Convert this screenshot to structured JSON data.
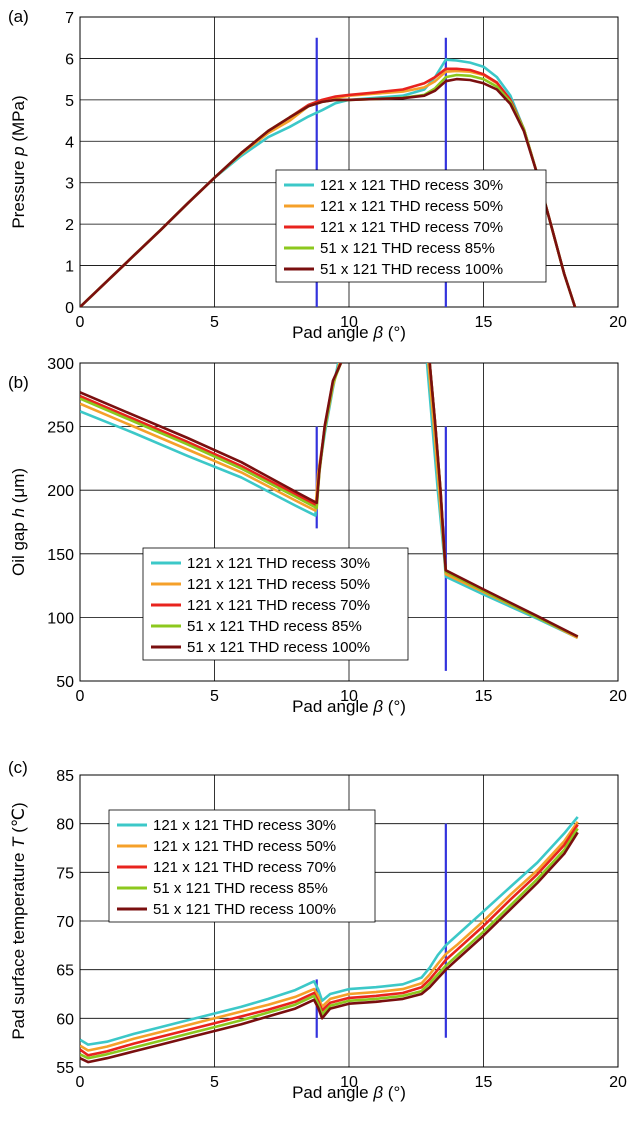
{
  "colors": {
    "series": [
      "#3cc8c8",
      "#f5a02a",
      "#e8231e",
      "#8cc81e",
      "#7a0f0f"
    ],
    "marker": "#3333dd",
    "grid": "#000000"
  },
  "chart_data": [
    {
      "type": "line",
      "panel_label": "(a)",
      "xlabel_prefix": "Pad angle ",
      "xlabel_symbol": "β",
      "xlabel_suffix": " (°)",
      "ylabel_prefix": "Pressure ",
      "ylabel_symbol": "p",
      "ylabel_suffix": " (MPa)",
      "xlim": [
        0,
        20
      ],
      "ylim": [
        0,
        7
      ],
      "xticks": [
        0,
        5,
        10,
        15,
        20
      ],
      "yticks": [
        0,
        1,
        2,
        3,
        4,
        5,
        6,
        7
      ],
      "grid": true,
      "legend_position": "lower-center",
      "markers": [
        {
          "x": 8.8,
          "y1": 0,
          "y2": 6.5
        },
        {
          "x": 13.6,
          "y1": 0,
          "y2": 6.5
        }
      ],
      "series": [
        {
          "name": "121 x 121 THD recess 30%",
          "x": [
            0,
            1,
            2,
            3,
            4,
            5,
            6,
            7,
            7.8,
            8.5,
            9.0,
            9.5,
            10,
            11,
            12,
            12.8,
            13.2,
            13.6,
            14.0,
            14.5,
            15.0,
            15.5,
            16.0,
            16.5,
            17.0,
            17.5,
            18.0,
            18.4
          ],
          "y": [
            0,
            0.62,
            1.24,
            1.86,
            2.5,
            3.12,
            3.65,
            4.1,
            4.35,
            4.6,
            4.75,
            4.92,
            5.0,
            5.05,
            5.1,
            5.25,
            5.55,
            5.97,
            5.95,
            5.9,
            5.8,
            5.55,
            5.1,
            4.3,
            3.2,
            2.0,
            0.8,
            0
          ]
        },
        {
          "name": "121 x 121 THD recess 50%",
          "x": [
            0,
            1,
            2,
            3,
            4,
            5,
            6,
            7,
            7.8,
            8.5,
            9.0,
            9.5,
            10,
            11,
            12,
            12.8,
            13.2,
            13.6,
            14.0,
            14.5,
            15.0,
            15.5,
            16.0,
            16.5,
            17.0,
            17.5,
            18.0,
            18.4
          ],
          "y": [
            0,
            0.62,
            1.24,
            1.86,
            2.5,
            3.12,
            3.7,
            4.2,
            4.5,
            4.85,
            4.98,
            5.05,
            5.1,
            5.15,
            5.2,
            5.3,
            5.45,
            5.68,
            5.7,
            5.68,
            5.6,
            5.4,
            5.0,
            4.3,
            3.2,
            2.0,
            0.8,
            0
          ]
        },
        {
          "name": "121 x 121 THD recess 70%",
          "x": [
            0,
            1,
            2,
            3,
            4,
            5,
            6,
            7,
            7.8,
            8.5,
            9.0,
            9.5,
            10,
            11,
            12,
            12.8,
            13.2,
            13.6,
            14.0,
            14.5,
            15.0,
            15.5,
            16.0,
            16.5,
            17.0,
            17.5,
            18.0,
            18.4
          ],
          "y": [
            0,
            0.62,
            1.24,
            1.86,
            2.5,
            3.12,
            3.72,
            4.25,
            4.58,
            4.88,
            5.0,
            5.08,
            5.12,
            5.18,
            5.25,
            5.4,
            5.55,
            5.75,
            5.75,
            5.72,
            5.62,
            5.42,
            5.0,
            4.3,
            3.2,
            2.0,
            0.8,
            0
          ]
        },
        {
          "name": "51 x 121 THD recess 85%",
          "x": [
            0,
            1,
            2,
            3,
            4,
            5,
            6,
            7,
            7.8,
            8.5,
            9.0,
            9.5,
            10,
            11,
            12,
            12.8,
            13.2,
            13.6,
            14.0,
            14.5,
            15.0,
            15.5,
            16.0,
            16.5,
            17.0,
            17.5,
            18.0,
            18.4
          ],
          "y": [
            0,
            0.62,
            1.24,
            1.86,
            2.5,
            3.12,
            3.72,
            4.25,
            4.58,
            4.85,
            4.95,
            5.0,
            5.0,
            5.02,
            5.05,
            5.12,
            5.28,
            5.55,
            5.6,
            5.58,
            5.5,
            5.32,
            4.95,
            4.3,
            3.2,
            2.0,
            0.8,
            0
          ]
        },
        {
          "name": "51 x 121 THD recess 100%",
          "x": [
            0,
            1,
            2,
            3,
            4,
            5,
            6,
            7,
            7.8,
            8.5,
            9.0,
            9.5,
            10,
            11,
            12,
            12.8,
            13.2,
            13.6,
            14.0,
            14.5,
            15.0,
            15.5,
            16.0,
            16.5,
            17.0,
            17.5,
            18.0,
            18.4
          ],
          "y": [
            0,
            0.62,
            1.24,
            1.86,
            2.5,
            3.12,
            3.72,
            4.25,
            4.58,
            4.85,
            4.95,
            5.0,
            5.0,
            5.02,
            5.04,
            5.1,
            5.22,
            5.45,
            5.5,
            5.48,
            5.4,
            5.25,
            4.9,
            4.25,
            3.2,
            2.0,
            0.8,
            0
          ]
        }
      ]
    },
    {
      "type": "line",
      "panel_label": "(b)",
      "xlabel_prefix": "Pad angle ",
      "xlabel_symbol": "β",
      "xlabel_suffix": " (°)",
      "ylabel_prefix": "Oil gap ",
      "ylabel_symbol": "h",
      "ylabel_suffix": " (μm)",
      "xlim": [
        0,
        20
      ],
      "ylim": [
        50,
        300
      ],
      "xticks": [
        0,
        5,
        10,
        15,
        20
      ],
      "yticks": [
        50,
        100,
        150,
        200,
        250,
        300
      ],
      "grid": true,
      "legend_position": "lower-left",
      "markers": [
        {
          "x": 8.8,
          "y1": 170,
          "y2": 250
        },
        {
          "x": 13.6,
          "y1": 58,
          "y2": 250
        }
      ],
      "series": [
        {
          "name": "121 x 121 THD recess 30%",
          "x": [
            0,
            2,
            4,
            6,
            8,
            8.75,
            8.85,
            9.1,
            9.4,
            9.6,
            null,
            12.9,
            13.1,
            13.3,
            13.55,
            13.6,
            15,
            17,
            18.5
          ],
          "y": [
            262,
            245,
            227,
            210,
            188,
            180,
            210,
            245,
            280,
            300,
            null,
            300,
            250,
            200,
            145,
            132,
            118,
            99,
            84
          ]
        },
        {
          "name": "121 x 121 THD recess 50%",
          "x": [
            0,
            2,
            4,
            6,
            8,
            8.75,
            8.85,
            9.1,
            9.4,
            9.65,
            null,
            12.95,
            13.15,
            13.35,
            13.55,
            13.6,
            15,
            17,
            18.5
          ],
          "y": [
            268,
            250,
            232,
            214,
            192,
            184,
            213,
            248,
            282,
            300,
            null,
            300,
            252,
            200,
            148,
            134,
            120,
            100,
            84
          ]
        },
        {
          "name": "121 x 121 THD recess 70%",
          "x": [
            0,
            2,
            4,
            6,
            8,
            8.8,
            8.9,
            9.1,
            9.4,
            9.7,
            null,
            13.0,
            13.2,
            13.4,
            13.55,
            13.6,
            15,
            17,
            18.5
          ],
          "y": [
            274,
            256,
            238,
            219,
            197,
            188,
            215,
            250,
            285,
            300,
            null,
            300,
            253,
            200,
            150,
            136,
            121,
            100,
            85
          ]
        },
        {
          "name": "51 x 121 THD recess 85%",
          "x": [
            0,
            2,
            4,
            6,
            8,
            8.8,
            8.9,
            9.1,
            9.4,
            9.7,
            null,
            13.0,
            13.2,
            13.4,
            13.55,
            13.6,
            15,
            17,
            18.5
          ],
          "y": [
            272,
            254,
            236,
            217,
            195,
            186,
            214,
            249,
            284,
            300,
            null,
            300,
            253,
            200,
            150,
            136,
            121,
            100,
            85
          ]
        },
        {
          "name": "51 x 121 THD recess 100%",
          "x": [
            0,
            2,
            4,
            6,
            8,
            8.8,
            8.9,
            9.1,
            9.4,
            9.7,
            null,
            13.0,
            13.2,
            13.4,
            13.55,
            13.6,
            15,
            17,
            18.5
          ],
          "y": [
            277,
            259,
            241,
            222,
            199,
            190,
            216,
            251,
            286,
            300,
            null,
            300,
            253,
            200,
            150,
            137,
            122,
            101,
            85
          ]
        }
      ]
    },
    {
      "type": "line",
      "panel_label": "(c)",
      "xlabel_prefix": "Pad angle ",
      "xlabel_symbol": "β",
      "xlabel_suffix": " (°)",
      "ylabel_prefix": "Pad surface temperature ",
      "ylabel_symbol": "T",
      "ylabel_suffix": " (℃)",
      "xlim": [
        0,
        20
      ],
      "ylim": [
        55,
        85
      ],
      "xticks": [
        0,
        5,
        10,
        15,
        20
      ],
      "yticks": [
        55,
        60,
        65,
        70,
        75,
        80,
        85
      ],
      "grid": true,
      "legend_position": "upper-left",
      "markers": [
        {
          "x": 8.8,
          "y1": 58,
          "y2": 64
        },
        {
          "x": 13.6,
          "y1": 58,
          "y2": 80
        }
      ],
      "series": [
        {
          "name": "121 x 121 THD recess 30%",
          "x": [
            0,
            0.3,
            1,
            2,
            3,
            4,
            5,
            6,
            7,
            8,
            8.7,
            8.85,
            9.0,
            9.3,
            10,
            11,
            12,
            12.7,
            13.0,
            13.3,
            13.6,
            14,
            15,
            16,
            17,
            18,
            18.5
          ],
          "y": [
            57.8,
            57.3,
            57.6,
            58.4,
            59.1,
            59.8,
            60.5,
            61.2,
            62.0,
            62.9,
            63.8,
            63.0,
            61.8,
            62.5,
            63.0,
            63.2,
            63.5,
            64.2,
            65.2,
            66.5,
            67.5,
            68.5,
            71.0,
            73.5,
            76.0,
            79.0,
            80.7
          ]
        },
        {
          "name": "121 x 121 THD recess 50%",
          "x": [
            0,
            0.3,
            1,
            2,
            3,
            4,
            5,
            6,
            7,
            8,
            8.7,
            8.85,
            9.0,
            9.3,
            10,
            11,
            12,
            12.7,
            13.0,
            13.3,
            13.6,
            14,
            15,
            16,
            17,
            18,
            18.5
          ],
          "y": [
            57.2,
            56.7,
            57.1,
            57.9,
            58.6,
            59.3,
            60.0,
            60.7,
            61.4,
            62.2,
            63.0,
            62.3,
            61.2,
            62.0,
            62.5,
            62.7,
            63.0,
            63.6,
            64.5,
            65.6,
            66.6,
            67.5,
            70.0,
            72.7,
            75.2,
            78.2,
            80.2
          ]
        },
        {
          "name": "121 x 121 THD recess 70%",
          "x": [
            0,
            0.3,
            1,
            2,
            3,
            4,
            5,
            6,
            7,
            8,
            8.7,
            8.85,
            9.0,
            9.3,
            10,
            11,
            12,
            12.7,
            13.0,
            13.3,
            13.6,
            14,
            15,
            16,
            17,
            18,
            18.5
          ],
          "y": [
            56.8,
            56.2,
            56.6,
            57.4,
            58.1,
            58.8,
            59.5,
            60.2,
            60.9,
            61.7,
            62.6,
            61.8,
            60.8,
            61.6,
            62.1,
            62.3,
            62.6,
            63.2,
            64.0,
            65.0,
            66.0,
            67.0,
            69.5,
            72.2,
            74.8,
            77.8,
            79.9
          ]
        },
        {
          "name": "51 x 121 THD recess 85%",
          "x": [
            0,
            0.3,
            1,
            2,
            3,
            4,
            5,
            6,
            7,
            8,
            8.7,
            8.85,
            9.0,
            9.3,
            10,
            11,
            12,
            12.7,
            13.0,
            13.3,
            13.6,
            14,
            15,
            16,
            17,
            18,
            18.5
          ],
          "y": [
            56.3,
            55.9,
            56.3,
            57.0,
            57.7,
            58.4,
            59.1,
            59.8,
            60.6,
            61.4,
            62.3,
            61.5,
            60.4,
            61.3,
            61.8,
            62.0,
            62.3,
            62.8,
            63.6,
            64.5,
            65.4,
            66.4,
            68.9,
            71.6,
            74.3,
            77.3,
            79.5
          ]
        },
        {
          "name": "51 x 121 THD recess 100%",
          "x": [
            0,
            0.3,
            1,
            2,
            3,
            4,
            5,
            6,
            7,
            8,
            8.7,
            8.85,
            9.0,
            9.3,
            10,
            11,
            12,
            12.7,
            13.0,
            13.3,
            13.6,
            14,
            15,
            16,
            17,
            18,
            18.5
          ],
          "y": [
            55.9,
            55.5,
            55.9,
            56.6,
            57.3,
            58.0,
            58.7,
            59.4,
            60.2,
            61.0,
            61.9,
            61.1,
            60.0,
            61.0,
            61.5,
            61.7,
            62.0,
            62.5,
            63.2,
            64.1,
            65.0,
            66.0,
            68.5,
            71.2,
            73.9,
            76.9,
            79.1
          ]
        }
      ]
    }
  ]
}
